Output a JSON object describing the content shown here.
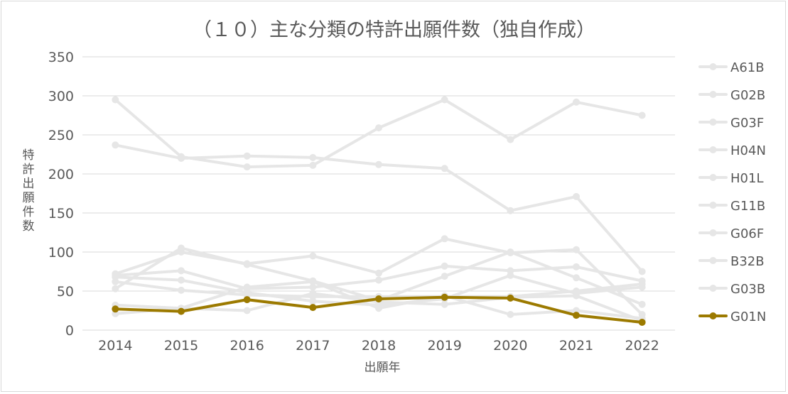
{
  "chart_data": {
    "type": "line",
    "title": "（１０）主な分類の特許出願件数（独自作成）",
    "xlabel": "出願年",
    "ylabel": "特許出願件数",
    "categories": [
      "2014",
      "2015",
      "2016",
      "2017",
      "2018",
      "2019",
      "2020",
      "2021",
      "2022"
    ],
    "ylim": [
      0,
      350
    ],
    "yticks": [
      0,
      50,
      100,
      150,
      200,
      250,
      300,
      350
    ],
    "grid": true,
    "legend_position": "right",
    "series": [
      {
        "name": "A61B",
        "color": "#e6e6e6",
        "values": [
          295,
          222,
          209,
          211,
          259,
          295,
          244,
          292,
          275
        ]
      },
      {
        "name": "G02B",
        "color": "#e6e6e6",
        "values": [
          237,
          220,
          223,
          221,
          212,
          207,
          153,
          171,
          75
        ]
      },
      {
        "name": "G03F",
        "color": "#e6e6e6",
        "values": [
          72,
          100,
          85,
          95,
          73,
          117,
          99,
          103,
          20
        ]
      },
      {
        "name": "H04N",
        "color": "#e6e6e6",
        "values": [
          53,
          105,
          84,
          63,
          38,
          69,
          100,
          67,
          33
        ]
      },
      {
        "name": "H01L",
        "color": "#e6e6e6",
        "values": [
          70,
          76,
          53,
          55,
          64,
          82,
          76,
          81,
          63
        ]
      },
      {
        "name": "G11B",
        "color": "#e6e6e6",
        "values": [
          68,
          64,
          48,
          37,
          32,
          40,
          70,
          47,
          55
        ]
      },
      {
        "name": "G06F",
        "color": "#e6e6e6",
        "values": [
          62,
          51,
          45,
          43,
          43,
          43,
          43,
          50,
          59
        ]
      },
      {
        "name": "B32B",
        "color": "#e6e6e6",
        "values": [
          32,
          28,
          55,
          62,
          28,
          44,
          20,
          25,
          15
        ]
      },
      {
        "name": "G03B",
        "color": "#e6e6e6",
        "values": [
          21,
          28,
          25,
          47,
          36,
          33,
          42,
          44,
          12
        ]
      },
      {
        "name": "G01N",
        "color": "#9c7a00",
        "values": [
          27,
          24,
          39,
          29,
          40,
          42,
          41,
          19,
          10
        ]
      }
    ]
  }
}
